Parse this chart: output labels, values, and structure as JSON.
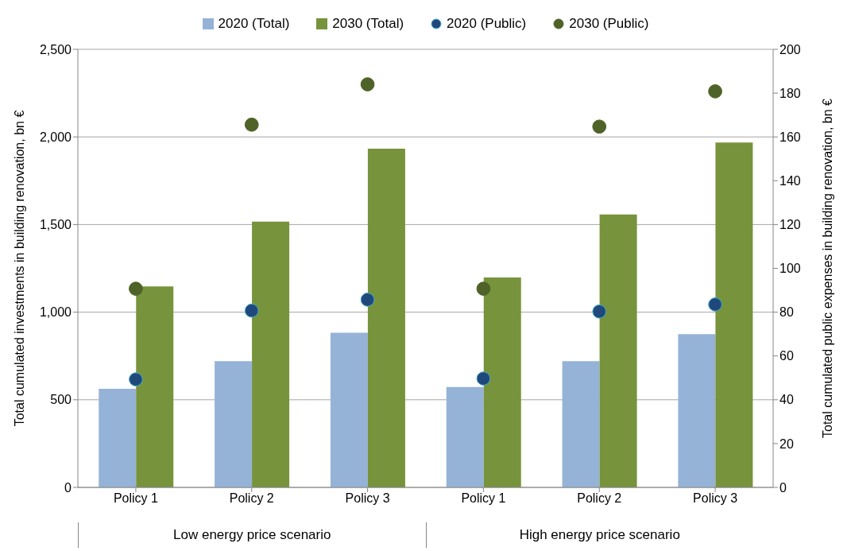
{
  "chart_data": {
    "type": "bar",
    "categories": [
      "Policy 1",
      "Policy 2",
      "Policy 3",
      "Policy 1",
      "Policy 2",
      "Policy 3"
    ],
    "ylabel": "Total cumulated investments in building renovation, bn €",
    "y2label": "Total cumulated public expenses in building renovation, bn €",
    "series": [
      {
        "name": "2020 (Total)",
        "color": "#95b3d7",
        "values": [
          563,
          720,
          883,
          573,
          720,
          875
        ]
      },
      {
        "name": "2030 (Total)",
        "color": "#77933c",
        "values": [
          1147,
          1517,
          1933,
          1198,
          1557,
          1968
        ]
      },
      {
        "name": "2020 (Public)",
        "type": "scatter",
        "axis": "y2",
        "color": "#1f497d",
        "values": [
          49.3,
          80.7,
          85.7,
          49.7,
          80.3,
          83.5
        ]
      },
      {
        "name": "2030 (Public)",
        "type": "scatter",
        "axis": "y2",
        "color": "#4f6228",
        "values": [
          90.7,
          165.6,
          184,
          90.7,
          164.7,
          180.8
        ]
      }
    ],
    "ylim": [
      0,
      2500
    ],
    "yticks": [
      0,
      500,
      {
        "value": 1000,
        "label": "1,000"
      },
      {
        "value": 1500,
        "label": "1,500"
      },
      {
        "value": 2000,
        "label": "2,000"
      },
      {
        "value": 2500,
        "label": "2,500"
      }
    ],
    "y2lim": [
      0,
      200
    ],
    "y2ticks": [
      0,
      20,
      40,
      60,
      80,
      100,
      120,
      140,
      160,
      180,
      200
    ],
    "grid": "y",
    "legend": "top",
    "marker": "circle",
    "annotations": [
      "Low energy price scenario",
      "High energy price scenario"
    ]
  }
}
